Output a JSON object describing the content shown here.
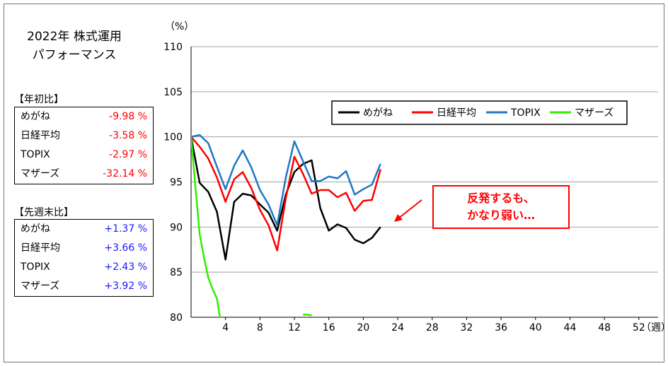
{
  "title_lines": [
    "2022年  株式運用",
    "パフォーマンス"
  ],
  "ytd": {
    "label": "【年初比】",
    "rows": [
      {
        "name": "めがね",
        "value": "-9.98 %"
      },
      {
        "name": "日経平均",
        "value": "-3.58 %"
      },
      {
        "name": "TOPIX",
        "value": "-2.97 %"
      },
      {
        "name": "マザーズ",
        "value": "-32.14 %"
      }
    ]
  },
  "wow": {
    "label": "【先週末比】",
    "rows": [
      {
        "name": "めがね",
        "value": "+1.37 %"
      },
      {
        "name": "日経平均",
        "value": "+3.66 %"
      },
      {
        "name": "TOPIX",
        "value": "+2.43 %"
      },
      {
        "name": "マザーズ",
        "value": "+3.92 %"
      }
    ]
  },
  "annotation": {
    "lines": [
      "反発するも、",
      "かなり弱い…"
    ],
    "color": "#ff0000"
  },
  "chart_data": {
    "type": "line",
    "ylabel": "（%）",
    "xlabel": "（週）",
    "ylim": [
      80,
      110
    ],
    "xlim": [
      0,
      54
    ],
    "yticks": [
      "80",
      "85",
      "90",
      "95",
      "100",
      "105",
      "110"
    ],
    "xticks": [
      "4",
      "8",
      "12",
      "16",
      "20",
      "24",
      "28",
      "32",
      "36",
      "40",
      "44",
      "48",
      "52"
    ],
    "grid": "horizontal",
    "legend_position": "top-right",
    "series": [
      {
        "name": "めがね",
        "color": "#000000",
        "x": [
          0,
          1,
          2,
          3,
          4,
          5,
          6,
          7,
          8,
          9,
          10,
          11,
          12,
          13,
          14,
          15,
          16,
          17,
          18,
          19,
          20,
          21,
          22
        ],
        "y": [
          100,
          94.9,
          93.9,
          91.7,
          86.4,
          92.8,
          93.7,
          93.5,
          92.5,
          91.6,
          89.6,
          93.6,
          96.1,
          97.0,
          97.4,
          92.1,
          89.6,
          90.3,
          89.9,
          88.6,
          88.2,
          88.8,
          90.0
        ]
      },
      {
        "name": "日経平均",
        "color": "#ff0000",
        "x": [
          0,
          1,
          2,
          3,
          4,
          5,
          6,
          7,
          8,
          9,
          10,
          11,
          12,
          13,
          14,
          15,
          16,
          17,
          18,
          19,
          20,
          21,
          22
        ],
        "y": [
          100,
          98.9,
          97.6,
          95.5,
          92.8,
          95.3,
          96.1,
          94.3,
          91.9,
          90.2,
          87.4,
          93.2,
          97.8,
          95.9,
          93.7,
          94.1,
          94.1,
          93.3,
          93.8,
          91.8,
          92.9,
          93.0,
          96.4
        ]
      },
      {
        "name": "TOPIX",
        "color": "#1f77c4",
        "x": [
          0,
          1,
          2,
          3,
          4,
          5,
          6,
          7,
          8,
          9,
          10,
          11,
          12,
          13,
          14,
          15,
          16,
          17,
          18,
          19,
          20,
          21,
          22
        ],
        "y": [
          100,
          100.2,
          99.3,
          96.7,
          94.2,
          96.8,
          98.5,
          96.6,
          94.1,
          92.5,
          90.2,
          95.5,
          99.5,
          97.3,
          95.1,
          95.1,
          95.6,
          95.4,
          96.2,
          93.6,
          94.2,
          94.7,
          97.0
        ]
      },
      {
        "name": "マザーズ",
        "color": "#33ee00",
        "segments": [
          {
            "x": [
              0,
              0.5,
              1,
              1.5,
              2,
              2.5,
              3,
              3.35
            ],
            "y": [
              100,
              94.5,
              89.2,
              86.6,
              84.4,
              83.1,
              82.1,
              80
            ]
          },
          {
            "x": [
              13,
              13.5,
              14
            ],
            "y": [
              80.3,
              80.3,
              80.2
            ]
          }
        ]
      }
    ]
  }
}
